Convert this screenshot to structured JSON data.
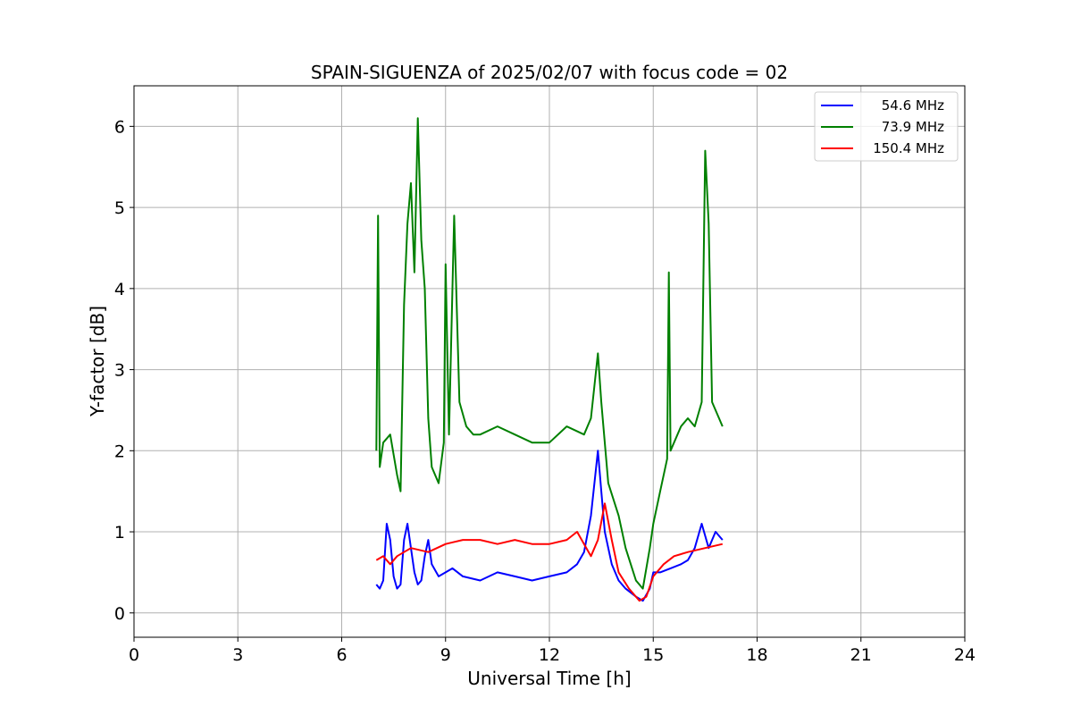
{
  "chart_data": {
    "type": "line",
    "title": "SPAIN-SIGUENZA of 2025/02/07 with focus code = 02",
    "xlabel": "Universal Time [h]",
    "ylabel": "Y-factor [dB]",
    "xlim": [
      0,
      24
    ],
    "ylim": [
      -0.3,
      6.5
    ],
    "xticks": [
      0,
      3,
      6,
      9,
      12,
      15,
      18,
      21,
      24
    ],
    "xtick_labels": [
      "0",
      "3",
      "6",
      "9",
      "12",
      "15",
      "18",
      "21",
      "24"
    ],
    "yticks": [
      0,
      1,
      2,
      3,
      4,
      5,
      6
    ],
    "ytick_labels": [
      "0",
      "1",
      "2",
      "3",
      "4",
      "5",
      "6"
    ],
    "grid": true,
    "legend_position": "top-right",
    "series": [
      {
        "name": "54.6 MHz",
        "color": "#0000ff",
        "points": [
          [
            7.0,
            0.35
          ],
          [
            7.1,
            0.3
          ],
          [
            7.2,
            0.4
          ],
          [
            7.3,
            1.1
          ],
          [
            7.4,
            0.9
          ],
          [
            7.5,
            0.45
          ],
          [
            7.6,
            0.3
          ],
          [
            7.7,
            0.35
          ],
          [
            7.8,
            0.9
          ],
          [
            7.9,
            1.1
          ],
          [
            8.0,
            0.8
          ],
          [
            8.1,
            0.5
          ],
          [
            8.2,
            0.35
          ],
          [
            8.3,
            0.4
          ],
          [
            8.4,
            0.7
          ],
          [
            8.5,
            0.9
          ],
          [
            8.6,
            0.6
          ],
          [
            8.8,
            0.45
          ],
          [
            9.0,
            0.5
          ],
          [
            9.2,
            0.55
          ],
          [
            9.5,
            0.45
          ],
          [
            10.0,
            0.4
          ],
          [
            10.5,
            0.5
          ],
          [
            11.0,
            0.45
          ],
          [
            11.5,
            0.4
          ],
          [
            12.0,
            0.45
          ],
          [
            12.5,
            0.5
          ],
          [
            12.8,
            0.6
          ],
          [
            13.0,
            0.75
          ],
          [
            13.2,
            1.2
          ],
          [
            13.3,
            1.6
          ],
          [
            13.4,
            2.0
          ],
          [
            13.5,
            1.5
          ],
          [
            13.6,
            1.0
          ],
          [
            13.8,
            0.6
          ],
          [
            14.0,
            0.4
          ],
          [
            14.2,
            0.3
          ],
          [
            14.5,
            0.2
          ],
          [
            14.7,
            0.15
          ],
          [
            14.9,
            0.3
          ],
          [
            15.0,
            0.5
          ],
          [
            15.2,
            0.5
          ],
          [
            15.5,
            0.55
          ],
          [
            15.8,
            0.6
          ],
          [
            16.0,
            0.65
          ],
          [
            16.2,
            0.8
          ],
          [
            16.4,
            1.1
          ],
          [
            16.6,
            0.8
          ],
          [
            16.8,
            1.0
          ],
          [
            17.0,
            0.9
          ]
        ]
      },
      {
        "name": "73.9 MHz",
        "color": "#008000",
        "points": [
          [
            7.0,
            2.0
          ],
          [
            7.05,
            4.9
          ],
          [
            7.1,
            1.8
          ],
          [
            7.2,
            2.1
          ],
          [
            7.4,
            2.2
          ],
          [
            7.6,
            1.7
          ],
          [
            7.7,
            1.5
          ],
          [
            7.8,
            3.8
          ],
          [
            7.9,
            4.8
          ],
          [
            8.0,
            5.3
          ],
          [
            8.1,
            4.2
          ],
          [
            8.2,
            6.1
          ],
          [
            8.3,
            4.6
          ],
          [
            8.4,
            4.0
          ],
          [
            8.5,
            2.4
          ],
          [
            8.6,
            1.8
          ],
          [
            8.8,
            1.6
          ],
          [
            8.95,
            2.1
          ],
          [
            9.0,
            4.3
          ],
          [
            9.1,
            2.2
          ],
          [
            9.25,
            4.9
          ],
          [
            9.4,
            2.6
          ],
          [
            9.6,
            2.3
          ],
          [
            9.8,
            2.2
          ],
          [
            10.0,
            2.2
          ],
          [
            10.5,
            2.3
          ],
          [
            11.0,
            2.2
          ],
          [
            11.5,
            2.1
          ],
          [
            12.0,
            2.1
          ],
          [
            12.5,
            2.3
          ],
          [
            13.0,
            2.2
          ],
          [
            13.2,
            2.4
          ],
          [
            13.3,
            2.8
          ],
          [
            13.4,
            3.2
          ],
          [
            13.5,
            2.6
          ],
          [
            13.7,
            1.6
          ],
          [
            14.0,
            1.2
          ],
          [
            14.2,
            0.8
          ],
          [
            14.5,
            0.4
          ],
          [
            14.7,
            0.3
          ],
          [
            14.9,
            0.8
          ],
          [
            15.0,
            1.1
          ],
          [
            15.2,
            1.5
          ],
          [
            15.4,
            1.9
          ],
          [
            15.45,
            4.2
          ],
          [
            15.5,
            2.0
          ],
          [
            15.8,
            2.3
          ],
          [
            16.0,
            2.4
          ],
          [
            16.2,
            2.3
          ],
          [
            16.4,
            2.6
          ],
          [
            16.5,
            5.7
          ],
          [
            16.6,
            4.8
          ],
          [
            16.7,
            2.6
          ],
          [
            16.9,
            2.4
          ],
          [
            17.0,
            2.3
          ]
        ]
      },
      {
        "name": "150.4 MHz",
        "color": "#ff0000",
        "points": [
          [
            7.0,
            0.65
          ],
          [
            7.2,
            0.7
          ],
          [
            7.4,
            0.6
          ],
          [
            7.6,
            0.7
          ],
          [
            7.8,
            0.75
          ],
          [
            8.0,
            0.8
          ],
          [
            8.5,
            0.75
          ],
          [
            9.0,
            0.85
          ],
          [
            9.5,
            0.9
          ],
          [
            10.0,
            0.9
          ],
          [
            10.5,
            0.85
          ],
          [
            11.0,
            0.9
          ],
          [
            11.5,
            0.85
          ],
          [
            12.0,
            0.85
          ],
          [
            12.5,
            0.9
          ],
          [
            12.8,
            1.0
          ],
          [
            13.0,
            0.85
          ],
          [
            13.2,
            0.7
          ],
          [
            13.4,
            0.9
          ],
          [
            13.6,
            1.35
          ],
          [
            13.8,
            0.9
          ],
          [
            14.0,
            0.5
          ],
          [
            14.3,
            0.3
          ],
          [
            14.6,
            0.15
          ],
          [
            14.8,
            0.2
          ],
          [
            15.0,
            0.45
          ],
          [
            15.3,
            0.6
          ],
          [
            15.6,
            0.7
          ],
          [
            16.0,
            0.75
          ],
          [
            16.5,
            0.8
          ],
          [
            17.0,
            0.85
          ]
        ]
      }
    ]
  }
}
